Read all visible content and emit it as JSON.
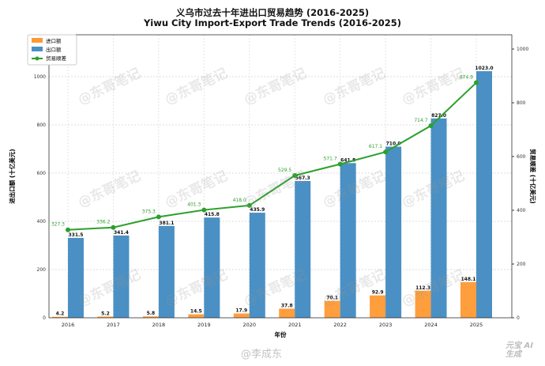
{
  "chart_data": {
    "type": "bar+line",
    "title": "义乌市过去十年进出口贸易趋势 (2016-2025)",
    "subtitle": "Yiwu City Import-Export Trade Trends (2016-2025)",
    "xlabel": "年份",
    "ylabel": "进出口额 (十亿美元)",
    "y2label": "贸易顺差 (十亿美元)",
    "categories": [
      "2016",
      "2017",
      "2018",
      "2019",
      "2020",
      "2021",
      "2022",
      "2023",
      "2024",
      "2025"
    ],
    "series": [
      {
        "name": "进口额",
        "type": "bar",
        "axis": "left",
        "color": "#ff9933",
        "values": [
          4.2,
          5.2,
          5.8,
          14.5,
          17.9,
          37.8,
          70.1,
          92.9,
          112.3,
          148.1
        ]
      },
      {
        "name": "出口额",
        "type": "bar",
        "axis": "left",
        "color": "#4a90c4",
        "values": [
          331.5,
          341.4,
          381.1,
          415.8,
          435.9,
          567.3,
          641.8,
          710.0,
          827.0,
          1023.0
        ]
      },
      {
        "name": "贸易顺差",
        "type": "line",
        "axis": "right",
        "color": "#2ca02c",
        "values": [
          327.3,
          336.2,
          375.3,
          401.3,
          418.0,
          529.5,
          571.7,
          617.1,
          714.7,
          874.9
        ]
      }
    ],
    "ylim": [
      0,
      1174
    ],
    "y2lim": [
      0,
      1053
    ],
    "yticks": [
      0,
      200,
      400,
      600,
      800,
      1000
    ],
    "y2ticks": [
      0,
      200,
      400,
      600,
      800,
      1000
    ],
    "grid": true,
    "legend": "top-left"
  },
  "watermarks": {
    "main": "@东哥笔记",
    "bottom": "@李成东",
    "logo": "元宝 AI生成"
  }
}
